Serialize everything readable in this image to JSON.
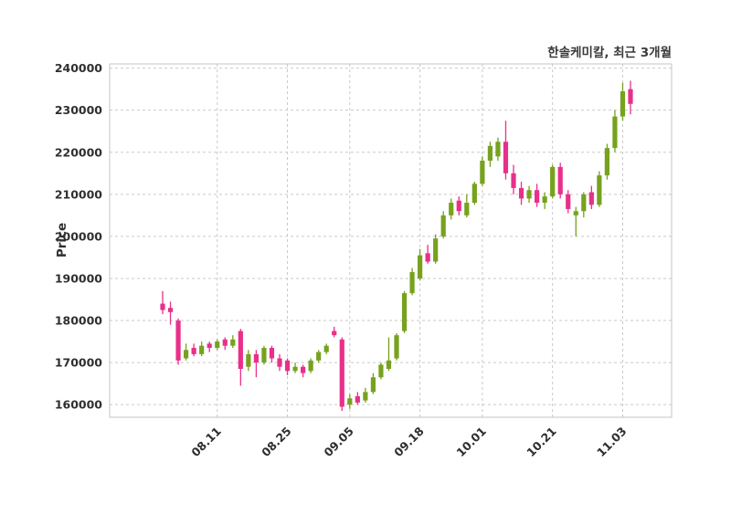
{
  "chart_data": {
    "type": "candlestick",
    "title": "한솔케미칼, 최근 3개월",
    "ylabel": "Price",
    "grid": true,
    "legend": "none",
    "up_color": "#76a21e",
    "down_color": "#e8308a",
    "background_color": "#ffffff",
    "ylim": [
      157000,
      241000
    ],
    "yticks": [
      160000,
      170000,
      180000,
      190000,
      200000,
      210000,
      220000,
      230000,
      240000
    ],
    "xticks": [
      {
        "index": 7,
        "label": "08.11"
      },
      {
        "index": 16,
        "label": "08.25"
      },
      {
        "index": 24,
        "label": "09.05"
      },
      {
        "index": 33,
        "label": "09.18"
      },
      {
        "index": 41,
        "label": "10.01"
      },
      {
        "index": 50,
        "label": "10.21"
      },
      {
        "index": 59,
        "label": "11.03"
      }
    ],
    "candles_format": [
      "open",
      "high",
      "low",
      "close"
    ],
    "candles": [
      [
        184000,
        187000,
        181500,
        182500
      ],
      [
        183000,
        184500,
        179000,
        182000
      ],
      [
        180000,
        180500,
        169500,
        170500
      ],
      [
        171000,
        174500,
        170500,
        173000
      ],
      [
        173500,
        174500,
        171500,
        172000
      ],
      [
        172000,
        175000,
        171500,
        174000
      ],
      [
        174500,
        175000,
        172500,
        173500
      ],
      [
        173500,
        175500,
        173000,
        175000
      ],
      [
        175500,
        176000,
        173000,
        174000
      ],
      [
        174000,
        176500,
        173500,
        175500
      ],
      [
        177500,
        178000,
        164500,
        168500
      ],
      [
        169000,
        173000,
        168000,
        172000
      ],
      [
        172000,
        173000,
        166500,
        170000
      ],
      [
        170000,
        174000,
        169500,
        173500
      ],
      [
        173500,
        174000,
        170000,
        171000
      ],
      [
        171000,
        172000,
        168000,
        169000
      ],
      [
        170500,
        171000,
        167000,
        168000
      ],
      [
        168000,
        170000,
        167500,
        169000
      ],
      [
        169000,
        169500,
        166500,
        167500
      ],
      [
        168000,
        171000,
        167500,
        170500
      ],
      [
        170500,
        173000,
        170000,
        172500
      ],
      [
        172500,
        174500,
        172000,
        174000
      ],
      [
        177500,
        178500,
        176000,
        176500
      ],
      [
        175500,
        176000,
        158500,
        159500
      ],
      [
        160000,
        162500,
        159000,
        161500
      ],
      [
        162000,
        163000,
        160000,
        160500
      ],
      [
        161000,
        164000,
        160500,
        163000
      ],
      [
        163000,
        167500,
        162500,
        166500
      ],
      [
        166500,
        170000,
        166000,
        169500
      ],
      [
        168500,
        176000,
        168000,
        170500
      ],
      [
        171000,
        177000,
        170500,
        176500
      ],
      [
        177500,
        187000,
        177000,
        186500
      ],
      [
        186500,
        192500,
        186000,
        191500
      ],
      [
        190000,
        197000,
        189500,
        195500
      ],
      [
        196000,
        198000,
        193500,
        194000
      ],
      [
        194000,
        200500,
        193500,
        199500
      ],
      [
        200000,
        206000,
        199500,
        205000
      ],
      [
        205000,
        209000,
        204000,
        208000
      ],
      [
        208500,
        209500,
        205000,
        206000
      ],
      [
        205000,
        210000,
        204500,
        208000
      ],
      [
        208000,
        213000,
        207500,
        212500
      ],
      [
        212500,
        219000,
        212000,
        218000
      ],
      [
        218000,
        222500,
        216500,
        221500
      ],
      [
        219000,
        223500,
        218000,
        222500
      ],
      [
        222500,
        227500,
        213500,
        215000
      ],
      [
        215000,
        217000,
        210000,
        211500
      ],
      [
        211500,
        213000,
        207500,
        209000
      ],
      [
        209000,
        212000,
        208000,
        211000
      ],
      [
        211000,
        212500,
        207000,
        208000
      ],
      [
        208000,
        210500,
        206500,
        209500
      ],
      [
        209500,
        217000,
        209000,
        216500
      ],
      [
        216500,
        217500,
        209000,
        210000
      ],
      [
        210000,
        211000,
        205500,
        206500
      ],
      [
        205000,
        207000,
        200000,
        206000
      ],
      [
        206000,
        210500,
        204500,
        210000
      ],
      [
        210500,
        212000,
        206500,
        207500
      ],
      [
        207500,
        215500,
        207000,
        214500
      ],
      [
        214500,
        222000,
        213500,
        221000
      ],
      [
        221000,
        230000,
        220000,
        228500
      ],
      [
        228500,
        236500,
        227500,
        234500
      ],
      [
        235000,
        237000,
        229000,
        231500
      ]
    ]
  }
}
